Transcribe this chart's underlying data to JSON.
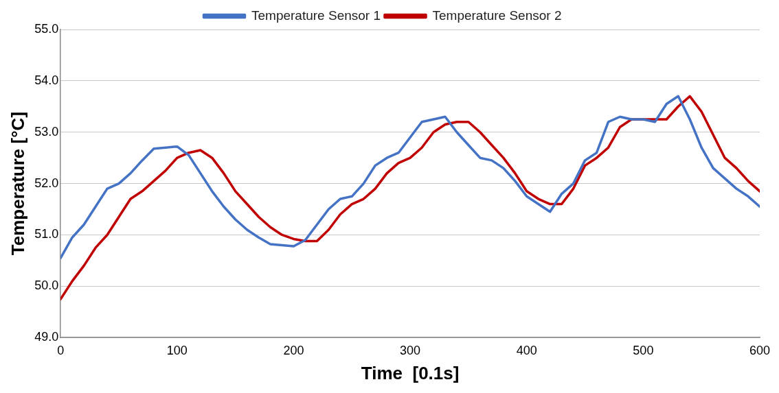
{
  "chart_data": {
    "type": "line",
    "xlabel": "Time  [0.1s]",
    "ylabel": "Temperature [°C]",
    "legend": "top",
    "grid": "y",
    "marker": "none",
    "line_style": "solid",
    "xlim": [
      0,
      600
    ],
    "xticks": [
      0,
      100,
      200,
      300,
      400,
      500,
      600
    ],
    "ylim": [
      49,
      55
    ],
    "yticks": [
      {
        "value": 49,
        "label": "49.0"
      },
      {
        "value": 50,
        "label": "50.0"
      },
      {
        "value": 51,
        "label": "51.0"
      },
      {
        "value": 52,
        "label": "52.0"
      },
      {
        "value": 53,
        "label": "53.0"
      },
      {
        "value": 54,
        "label": "54.0"
      },
      {
        "value": 55,
        "label": "55.0"
      }
    ],
    "x": [
      0,
      10,
      20,
      30,
      40,
      50,
      60,
      70,
      80,
      90,
      100,
      110,
      120,
      130,
      140,
      150,
      160,
      170,
      180,
      190,
      200,
      210,
      220,
      230,
      240,
      250,
      260,
      270,
      280,
      290,
      300,
      310,
      320,
      330,
      340,
      350,
      360,
      370,
      380,
      390,
      400,
      410,
      420,
      430,
      440,
      450,
      460,
      470,
      480,
      490,
      500,
      510,
      520,
      530,
      540,
      550,
      560,
      570,
      580,
      590,
      600
    ],
    "series": [
      {
        "name": "Temperature Sensor 1",
        "color": "#4472c4",
        "values": [
          50.55,
          50.95,
          51.2,
          51.55,
          51.9,
          52.0,
          52.2,
          52.45,
          52.68,
          52.7,
          52.72,
          52.55,
          52.2,
          51.85,
          51.55,
          51.3,
          51.1,
          50.95,
          50.82,
          50.8,
          50.78,
          50.9,
          51.2,
          51.5,
          51.7,
          51.75,
          52.0,
          52.35,
          52.5,
          52.6,
          52.9,
          53.2,
          53.25,
          53.3,
          53.0,
          52.75,
          52.5,
          52.45,
          52.3,
          52.05,
          51.75,
          51.6,
          51.45,
          51.8,
          52.0,
          52.45,
          52.6,
          53.2,
          53.3,
          53.25,
          53.25,
          53.2,
          53.55,
          53.7,
          53.25,
          52.7,
          52.3,
          52.1,
          51.9,
          51.75,
          51.55
        ]
      },
      {
        "name": "Temperature Sensor 2",
        "color": "#c00000",
        "values": [
          49.75,
          50.1,
          50.4,
          50.75,
          51.0,
          51.35,
          51.7,
          51.85,
          52.05,
          52.25,
          52.5,
          52.6,
          52.65,
          52.5,
          52.2,
          51.85,
          51.6,
          51.35,
          51.15,
          51.0,
          50.92,
          50.88,
          50.88,
          51.1,
          51.4,
          51.6,
          51.7,
          51.9,
          52.2,
          52.4,
          52.5,
          52.7,
          53.0,
          53.15,
          53.2,
          53.2,
          53.0,
          52.75,
          52.5,
          52.2,
          51.85,
          51.7,
          51.6,
          51.6,
          51.9,
          52.35,
          52.5,
          52.7,
          53.1,
          53.25,
          53.25,
          53.25,
          53.25,
          53.5,
          53.7,
          53.4,
          52.95,
          52.5,
          52.3,
          52.05,
          51.85
        ]
      }
    ]
  }
}
